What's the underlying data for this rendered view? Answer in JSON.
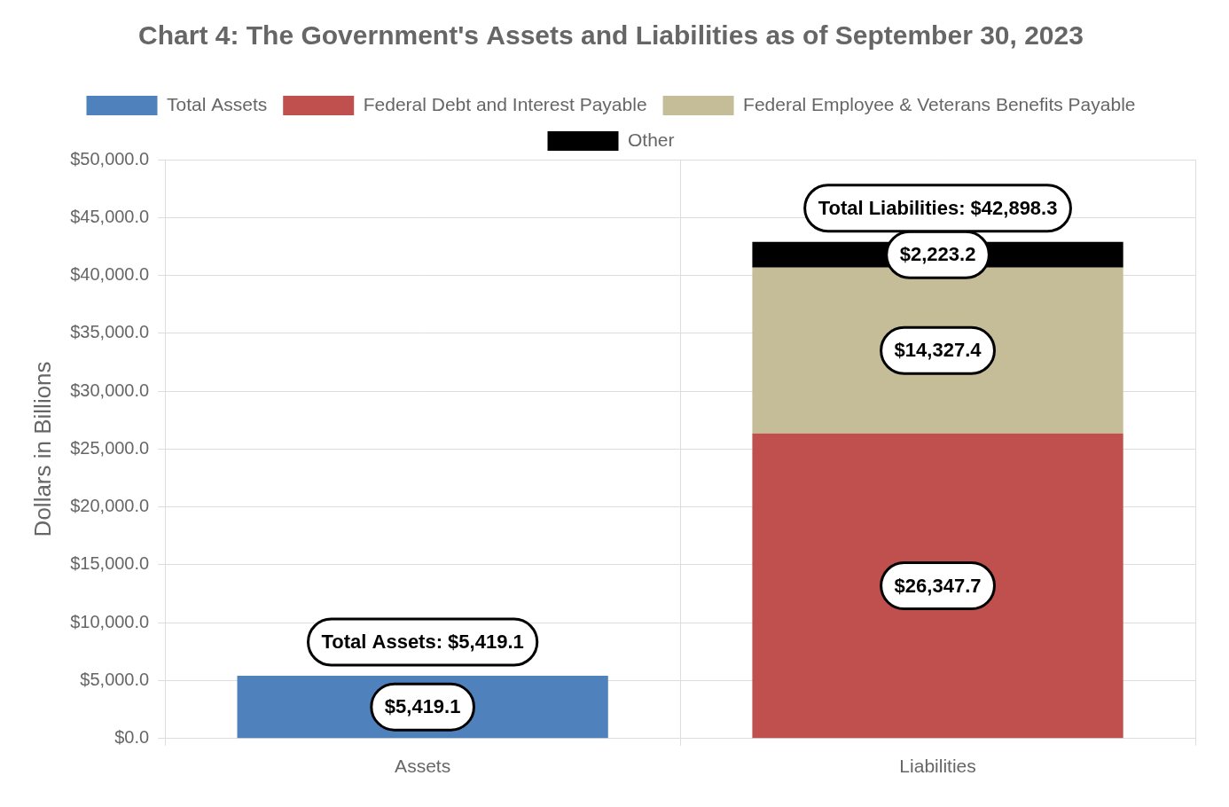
{
  "chart_data": {
    "type": "bar",
    "title": "Chart 4: The Government's Assets and Liabilities as of September 30, 2023",
    "y_label": "Dollars in Billions",
    "categories": [
      "Assets",
      "Liabilities"
    ],
    "series": [
      {
        "name": "Total Assets",
        "color": "#4f81bd",
        "values": [
          5419.1,
          null
        ],
        "value_labels": [
          "$5,419.1",
          null
        ]
      },
      {
        "name": "Federal Debt and Interest Payable",
        "color": "#c0504d",
        "values": [
          null,
          26347.7
        ],
        "value_labels": [
          null,
          "$26,347.7"
        ]
      },
      {
        "name": "Federal Employee & Veterans Benefits Payable",
        "color": "#c4bd97",
        "values": [
          null,
          14327.4
        ],
        "value_labels": [
          null,
          "$14,327.4"
        ]
      },
      {
        "name": "Other",
        "color": "#000000",
        "values": [
          null,
          2223.2
        ],
        "value_labels": [
          null,
          "$2,223.2"
        ]
      }
    ],
    "annotations": [
      {
        "category": "Assets",
        "text": "Total Assets: $5,419.1",
        "value": 5419.1
      },
      {
        "category": "Liabilities",
        "text": "Total Liabilities: $42,898.3",
        "value": 42898.3
      }
    ],
    "ylim": [
      0,
      50000
    ],
    "yticks": [
      {
        "value": 0,
        "label": "$0.0"
      },
      {
        "value": 5000,
        "label": "$5,000.0"
      },
      {
        "value": 10000,
        "label": "$10,000.0"
      },
      {
        "value": 15000,
        "label": "$15,000.0"
      },
      {
        "value": 20000,
        "label": "$20,000.0"
      },
      {
        "value": 25000,
        "label": "$25,000.0"
      },
      {
        "value": 30000,
        "label": "$30,000.0"
      },
      {
        "value": 35000,
        "label": "$35,000.0"
      },
      {
        "value": 40000,
        "label": "$40,000.0"
      },
      {
        "value": 45000,
        "label": "$45,000.0"
      },
      {
        "value": 50000,
        "label": "$50,000.0"
      }
    ],
    "stacked": true,
    "grid": true,
    "legend": "top",
    "data_labels": true
  }
}
